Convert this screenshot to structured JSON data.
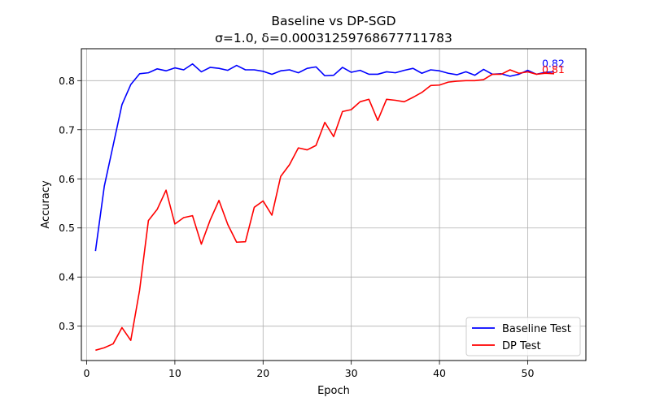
{
  "chart_data": {
    "type": "line",
    "title": "Baseline vs DP-SGD",
    "subtitle": "σ=1.0, δ=0.00031259768677711783",
    "xlabel": "Epoch",
    "ylabel": "Accuracy",
    "xlim": [
      -0.6,
      56.6
    ],
    "ylim": [
      0.23,
      0.865
    ],
    "xticks": [
      0,
      10,
      20,
      30,
      40,
      50
    ],
    "yticks": [
      0.3,
      0.4,
      0.5,
      0.6,
      0.7,
      0.8
    ],
    "ytick_labels": [
      "0.3",
      "0.4",
      "0.5",
      "0.6",
      "0.7",
      "0.8"
    ],
    "grid": true,
    "legend_position": "bottom-right",
    "x": [
      1,
      2,
      3,
      4,
      5,
      6,
      7,
      8,
      9,
      10,
      11,
      12,
      13,
      14,
      15,
      16,
      17,
      18,
      19,
      20,
      21,
      22,
      23,
      24,
      25,
      26,
      27,
      28,
      29,
      30,
      31,
      32,
      33,
      34,
      35,
      36,
      37,
      38,
      39,
      40,
      41,
      42,
      43,
      44,
      45,
      46,
      47,
      48,
      49,
      50,
      51,
      52,
      53
    ],
    "series": [
      {
        "name": "Baseline Test",
        "color": "#0000ff",
        "values": [
          0.453,
          0.585,
          0.668,
          0.751,
          0.792,
          0.814,
          0.816,
          0.824,
          0.82,
          0.826,
          0.822,
          0.834,
          0.818,
          0.827,
          0.825,
          0.821,
          0.831,
          0.822,
          0.822,
          0.819,
          0.813,
          0.82,
          0.822,
          0.816,
          0.825,
          0.828,
          0.81,
          0.811,
          0.827,
          0.817,
          0.821,
          0.813,
          0.813,
          0.818,
          0.816,
          0.821,
          0.825,
          0.815,
          0.822,
          0.82,
          0.815,
          0.812,
          0.818,
          0.811,
          0.823,
          0.813,
          0.814,
          0.809,
          0.813,
          0.821,
          0.813,
          0.817,
          0.818
        ],
        "end_label": "0.82"
      },
      {
        "name": "DP Test",
        "color": "#ff0000",
        "values": [
          0.251,
          0.256,
          0.264,
          0.297,
          0.271,
          0.373,
          0.515,
          0.538,
          0.577,
          0.508,
          0.521,
          0.525,
          0.467,
          0.516,
          0.556,
          0.507,
          0.471,
          0.472,
          0.542,
          0.555,
          0.526,
          0.605,
          0.629,
          0.663,
          0.659,
          0.668,
          0.715,
          0.686,
          0.737,
          0.741,
          0.757,
          0.762,
          0.719,
          0.762,
          0.76,
          0.757,
          0.766,
          0.776,
          0.79,
          0.791,
          0.797,
          0.799,
          0.8,
          0.8,
          0.802,
          0.813,
          0.813,
          0.822,
          0.815,
          0.818,
          0.813,
          0.815,
          0.814
        ],
        "end_label": "0.81"
      }
    ]
  }
}
